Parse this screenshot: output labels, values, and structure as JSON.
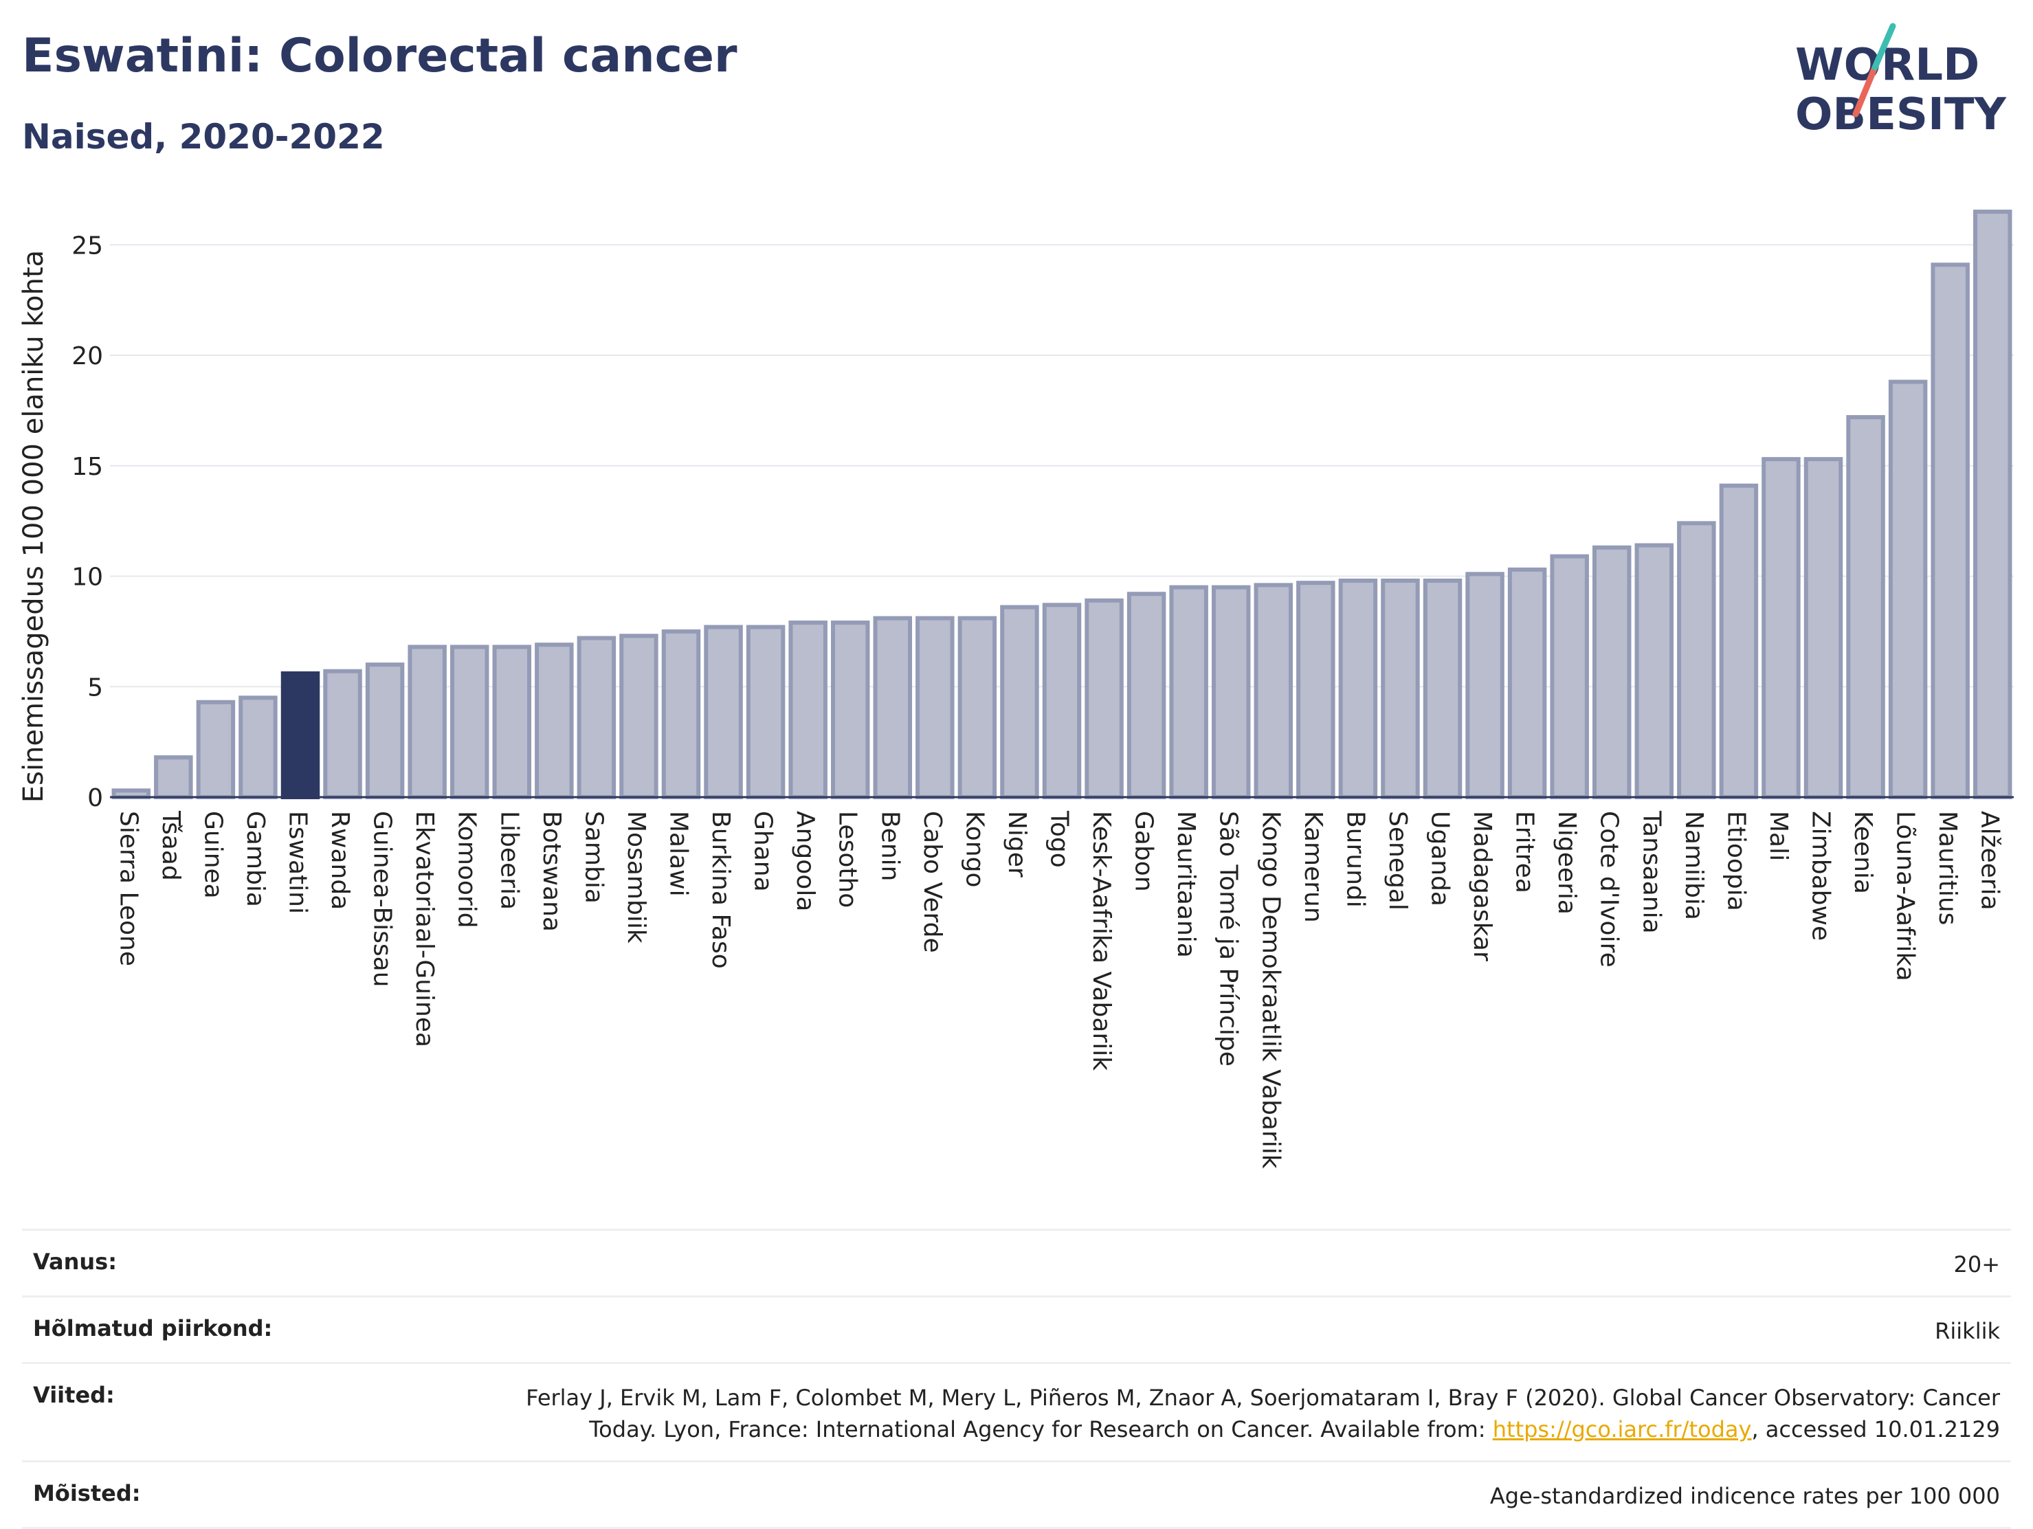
{
  "title": "Eswatini: Colorectal cancer",
  "subtitle": "Naised, 2020-2022",
  "logo": {
    "line1": "WORLD",
    "line2": "OBESITY",
    "colors": [
      "#2d3862",
      "#3dbdb0",
      "#e8675a"
    ]
  },
  "colors": {
    "bar": "#b9bdcd",
    "bar_border": "#949bb6",
    "highlight": "#2d3862",
    "grid": "#e6e8ee",
    "axis": "#2d3862",
    "link": "#e8a900"
  },
  "chart_data": {
    "type": "bar",
    "ylabel": "Esinemissagedus 100 000 elaniku kohta",
    "ylim": [
      0,
      27
    ],
    "yticks": [
      0,
      5,
      10,
      15,
      20,
      25
    ],
    "highlight": "Eswatini",
    "categories": [
      "Sierra Leone",
      "Tšaad",
      "Guinea",
      "Gambia",
      "Eswatini",
      "Rwanda",
      "Guinea-Bissau",
      "Ekvatoriaal-Guinea",
      "Komoorid",
      "Libeeria",
      "Botswana",
      "Sambia",
      "Mosambiik",
      "Malawi",
      "Burkina Faso",
      "Ghana",
      "Angoola",
      "Lesotho",
      "Benin",
      "Cabo Verde",
      "Kongo",
      "Niger",
      "Togo",
      "Kesk-Aafrika Vabariik",
      "Gabon",
      "Mauritaania",
      "São Tomé ja Príncipe",
      "Kongo Demokraatlik Vabariik",
      "Kamerun",
      "Burundi",
      "Senegal",
      "Uganda",
      "Madagaskar",
      "Eritrea",
      "Nigeeria",
      "Cote d'Ivoire",
      "Tansaania",
      "Namiibia",
      "Etioopia",
      "Mali",
      "Zimbabwe",
      "Keenia",
      "Lõuna-Aafrika",
      "Mauritius",
      "Alžeeria"
    ],
    "values": [
      0.3,
      1.8,
      4.3,
      4.5,
      5.6,
      5.7,
      6.0,
      6.8,
      6.8,
      6.8,
      6.9,
      7.2,
      7.3,
      7.5,
      7.7,
      7.7,
      7.9,
      7.9,
      8.1,
      8.1,
      8.1,
      8.6,
      8.7,
      8.9,
      9.2,
      9.5,
      9.5,
      9.6,
      9.7,
      9.8,
      9.8,
      9.8,
      10.1,
      10.3,
      10.9,
      11.3,
      11.4,
      12.4,
      14.1,
      15.3,
      15.3,
      17.2,
      18.8,
      24.1,
      26.5
    ]
  },
  "meta": [
    {
      "label": "Vanus:",
      "value": "20+"
    },
    {
      "label": "Hõlmatud piirkond:",
      "value": "Riiklik"
    },
    {
      "label": "Viited:",
      "value_prefix": "Ferlay J, Ervik M, Lam F, Colombet M, Mery L, Piñeros M, Znaor A, Soerjomataram I, Bray F (2020). Global Cancer Observatory: Cancer Today. Lyon, France: International Agency for Research on Cancer. Available from: ",
      "link": "https://gco.iarc.fr/today",
      "value_suffix": ", accessed 10.01.2129"
    },
    {
      "label": "Mõisted:",
      "value": "Age-standardized indicence rates per 100 000"
    }
  ]
}
